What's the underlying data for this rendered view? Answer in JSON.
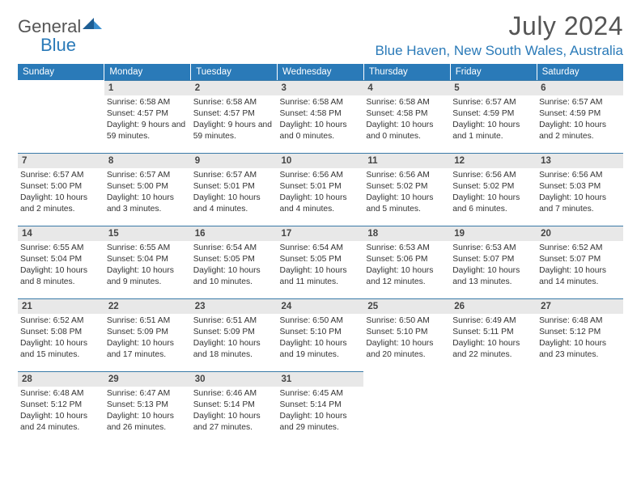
{
  "brand": {
    "general": "General",
    "blue": "Blue"
  },
  "title": "July 2024",
  "location": "Blue Haven, New South Wales, Australia",
  "colors": {
    "header_bg": "#2a7ab8",
    "daynum_bg": "#e8e8e8",
    "divider": "#3a7aa8",
    "text": "#333333",
    "logo_blue": "#2a7ab8"
  },
  "weekdays": [
    "Sunday",
    "Monday",
    "Tuesday",
    "Wednesday",
    "Thursday",
    "Friday",
    "Saturday"
  ],
  "weeks": [
    [
      null,
      {
        "n": "1",
        "sr": "6:58 AM",
        "ss": "4:57 PM",
        "dl": "9 hours and 59 minutes."
      },
      {
        "n": "2",
        "sr": "6:58 AM",
        "ss": "4:57 PM",
        "dl": "9 hours and 59 minutes."
      },
      {
        "n": "3",
        "sr": "6:58 AM",
        "ss": "4:58 PM",
        "dl": "10 hours and 0 minutes."
      },
      {
        "n": "4",
        "sr": "6:58 AM",
        "ss": "4:58 PM",
        "dl": "10 hours and 0 minutes."
      },
      {
        "n": "5",
        "sr": "6:57 AM",
        "ss": "4:59 PM",
        "dl": "10 hours and 1 minute."
      },
      {
        "n": "6",
        "sr": "6:57 AM",
        "ss": "4:59 PM",
        "dl": "10 hours and 2 minutes."
      }
    ],
    [
      {
        "n": "7",
        "sr": "6:57 AM",
        "ss": "5:00 PM",
        "dl": "10 hours and 2 minutes."
      },
      {
        "n": "8",
        "sr": "6:57 AM",
        "ss": "5:00 PM",
        "dl": "10 hours and 3 minutes."
      },
      {
        "n": "9",
        "sr": "6:57 AM",
        "ss": "5:01 PM",
        "dl": "10 hours and 4 minutes."
      },
      {
        "n": "10",
        "sr": "6:56 AM",
        "ss": "5:01 PM",
        "dl": "10 hours and 4 minutes."
      },
      {
        "n": "11",
        "sr": "6:56 AM",
        "ss": "5:02 PM",
        "dl": "10 hours and 5 minutes."
      },
      {
        "n": "12",
        "sr": "6:56 AM",
        "ss": "5:02 PM",
        "dl": "10 hours and 6 minutes."
      },
      {
        "n": "13",
        "sr": "6:56 AM",
        "ss": "5:03 PM",
        "dl": "10 hours and 7 minutes."
      }
    ],
    [
      {
        "n": "14",
        "sr": "6:55 AM",
        "ss": "5:04 PM",
        "dl": "10 hours and 8 minutes."
      },
      {
        "n": "15",
        "sr": "6:55 AM",
        "ss": "5:04 PM",
        "dl": "10 hours and 9 minutes."
      },
      {
        "n": "16",
        "sr": "6:54 AM",
        "ss": "5:05 PM",
        "dl": "10 hours and 10 minutes."
      },
      {
        "n": "17",
        "sr": "6:54 AM",
        "ss": "5:05 PM",
        "dl": "10 hours and 11 minutes."
      },
      {
        "n": "18",
        "sr": "6:53 AM",
        "ss": "5:06 PM",
        "dl": "10 hours and 12 minutes."
      },
      {
        "n": "19",
        "sr": "6:53 AM",
        "ss": "5:07 PM",
        "dl": "10 hours and 13 minutes."
      },
      {
        "n": "20",
        "sr": "6:52 AM",
        "ss": "5:07 PM",
        "dl": "10 hours and 14 minutes."
      }
    ],
    [
      {
        "n": "21",
        "sr": "6:52 AM",
        "ss": "5:08 PM",
        "dl": "10 hours and 15 minutes."
      },
      {
        "n": "22",
        "sr": "6:51 AM",
        "ss": "5:09 PM",
        "dl": "10 hours and 17 minutes."
      },
      {
        "n": "23",
        "sr": "6:51 AM",
        "ss": "5:09 PM",
        "dl": "10 hours and 18 minutes."
      },
      {
        "n": "24",
        "sr": "6:50 AM",
        "ss": "5:10 PM",
        "dl": "10 hours and 19 minutes."
      },
      {
        "n": "25",
        "sr": "6:50 AM",
        "ss": "5:10 PM",
        "dl": "10 hours and 20 minutes."
      },
      {
        "n": "26",
        "sr": "6:49 AM",
        "ss": "5:11 PM",
        "dl": "10 hours and 22 minutes."
      },
      {
        "n": "27",
        "sr": "6:48 AM",
        "ss": "5:12 PM",
        "dl": "10 hours and 23 minutes."
      }
    ],
    [
      {
        "n": "28",
        "sr": "6:48 AM",
        "ss": "5:12 PM",
        "dl": "10 hours and 24 minutes."
      },
      {
        "n": "29",
        "sr": "6:47 AM",
        "ss": "5:13 PM",
        "dl": "10 hours and 26 minutes."
      },
      {
        "n": "30",
        "sr": "6:46 AM",
        "ss": "5:14 PM",
        "dl": "10 hours and 27 minutes."
      },
      {
        "n": "31",
        "sr": "6:45 AM",
        "ss": "5:14 PM",
        "dl": "10 hours and 29 minutes."
      },
      null,
      null,
      null
    ]
  ],
  "labels": {
    "sunrise": "Sunrise:",
    "sunset": "Sunset:",
    "daylight": "Daylight:"
  }
}
